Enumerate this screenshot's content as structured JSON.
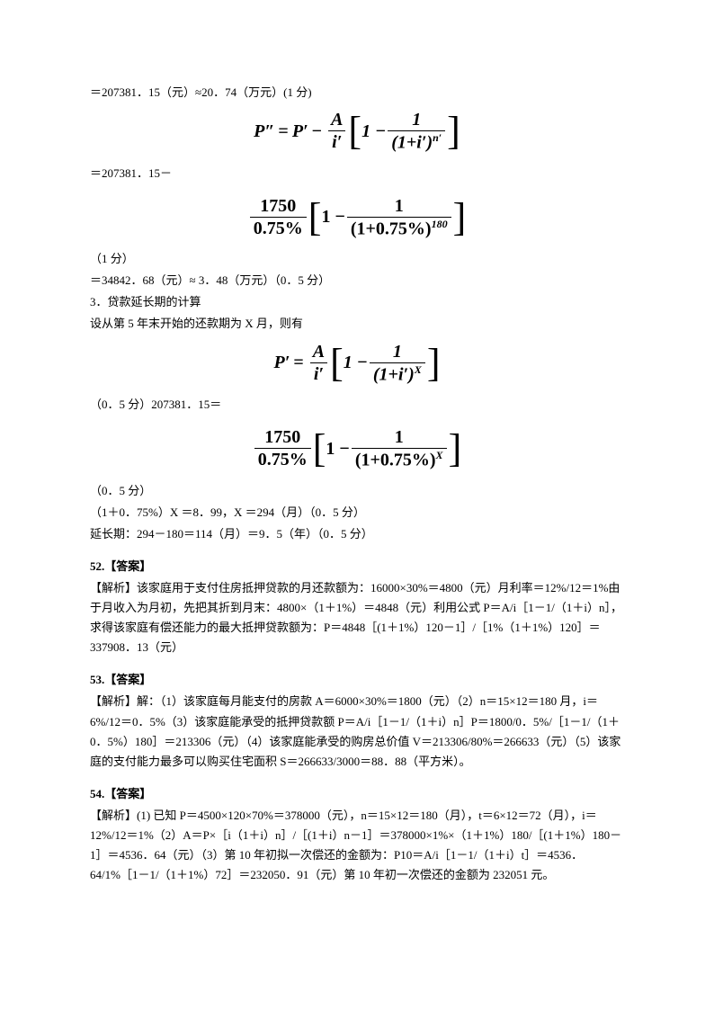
{
  "typography": {
    "body_font": "SimSun / 宋体",
    "body_fontsize_pt": 10,
    "formula_font": "Times New Roman",
    "formula_fontsize_pt": 15,
    "text_color": "#000000",
    "background_color": "#ffffff"
  },
  "block1": {
    "l1": "＝207381．15（元）≈20．74（万元）(1 分)",
    "f1": {
      "lhs": "P″",
      "op1": "=",
      "mid": "P′",
      "op2": "−",
      "frac_num": "A",
      "frac_den": "i′",
      "minus": "1 −",
      "inner_num": "1",
      "inner_den_base": "(1+i′)",
      "inner_den_exp": "n′"
    },
    "l2": "＝207381．15－",
    "f2": {
      "frac_num": "1750",
      "frac_den": "0.75%",
      "minus": "1 −",
      "inner_num": "1",
      "inner_den_base": "(1+0.75%)",
      "inner_den_exp": "180"
    },
    "l3": "（1 分）",
    "l4": "＝34842．68（元）≈ 3．48（万元）（0．5 分）",
    "l5": "3．贷款延长期的计算",
    "l6": "设从第 5 年末开始的还款期为 X 月，则有",
    "f3": {
      "lhs": "P′",
      "op1": "=",
      "frac_num": "A",
      "frac_den": "i′",
      "minus": "1 −",
      "inner_num": "1",
      "inner_den_base": "(1+i′)",
      "inner_den_exp": "X"
    },
    "l7": "（0．5 分）207381．15＝",
    "f4": {
      "frac_num": "1750",
      "frac_den": "0.75%",
      "minus": "1 −",
      "inner_num": "1",
      "inner_den_base": "(1+0.75%)",
      "inner_den_exp": "X"
    },
    "l8": "（0．5 分）",
    "l9": "（1＋0．75%）X ＝8．99，X ＝294（月）（0．5 分）",
    "l10": "延长期：294－180＝114（月）＝9．5（年）（0．5 分）"
  },
  "q52": {
    "head": "52.【答案】",
    "p1": "【解析】该家庭用于支付住房抵押贷款的月还款额为：16000×30%＝4800（元）月利率＝12%/12＝1%由于月收入为月初，先把其折到月末：4800×（1＋1%）＝4848（元）利用公式 P＝A/i［1－1/（1＋i）n］，求得该家庭有偿还能力的最大抵押贷款额为：P＝4848［(1＋1%）120－1］/［1%（1＋1%）120］＝337908．13（元）"
  },
  "q53": {
    "head": "53.【答案】",
    "p1": "【解析】解：（1）该家庭每月能支付的房款 A＝6000×30%＝1800（元）（2）n＝15×12＝180 月，i＝6%/12＝0．5%（3）该家庭能承受的抵押贷款额 P＝A/i［1－1/（1＋i）n］P＝1800/0．5%/［1－1/（1＋0．5%）180］＝213306（元）（4）该家庭能承受的购房总价值 V＝213306/80%＝266633（元）（5）该家庭的支付能力最多可以购买住宅面积 S＝266633/3000＝88．88（平方米）。"
  },
  "q54": {
    "head": "54.【答案】",
    "p1": "【解析】(1) 已知 P＝4500×120×70%＝378000（元），n＝15×12＝180（月），t＝6×12＝72（月），i＝12%/12＝1%（2）A＝P×［i（1＋i）n］/［(1＋i）n－1］＝378000×1%×（1＋1%）180/［(1＋1%）180－1］＝4536．64（元）（3）第 10 年初拟一次偿还的金额为：P10＝A/i［1－1/（1＋i）t］＝4536．64/1%［1－1/（1＋1%）72］＝232050．91（元）第 10 年初一次偿还的金额为 232051 元。"
  }
}
